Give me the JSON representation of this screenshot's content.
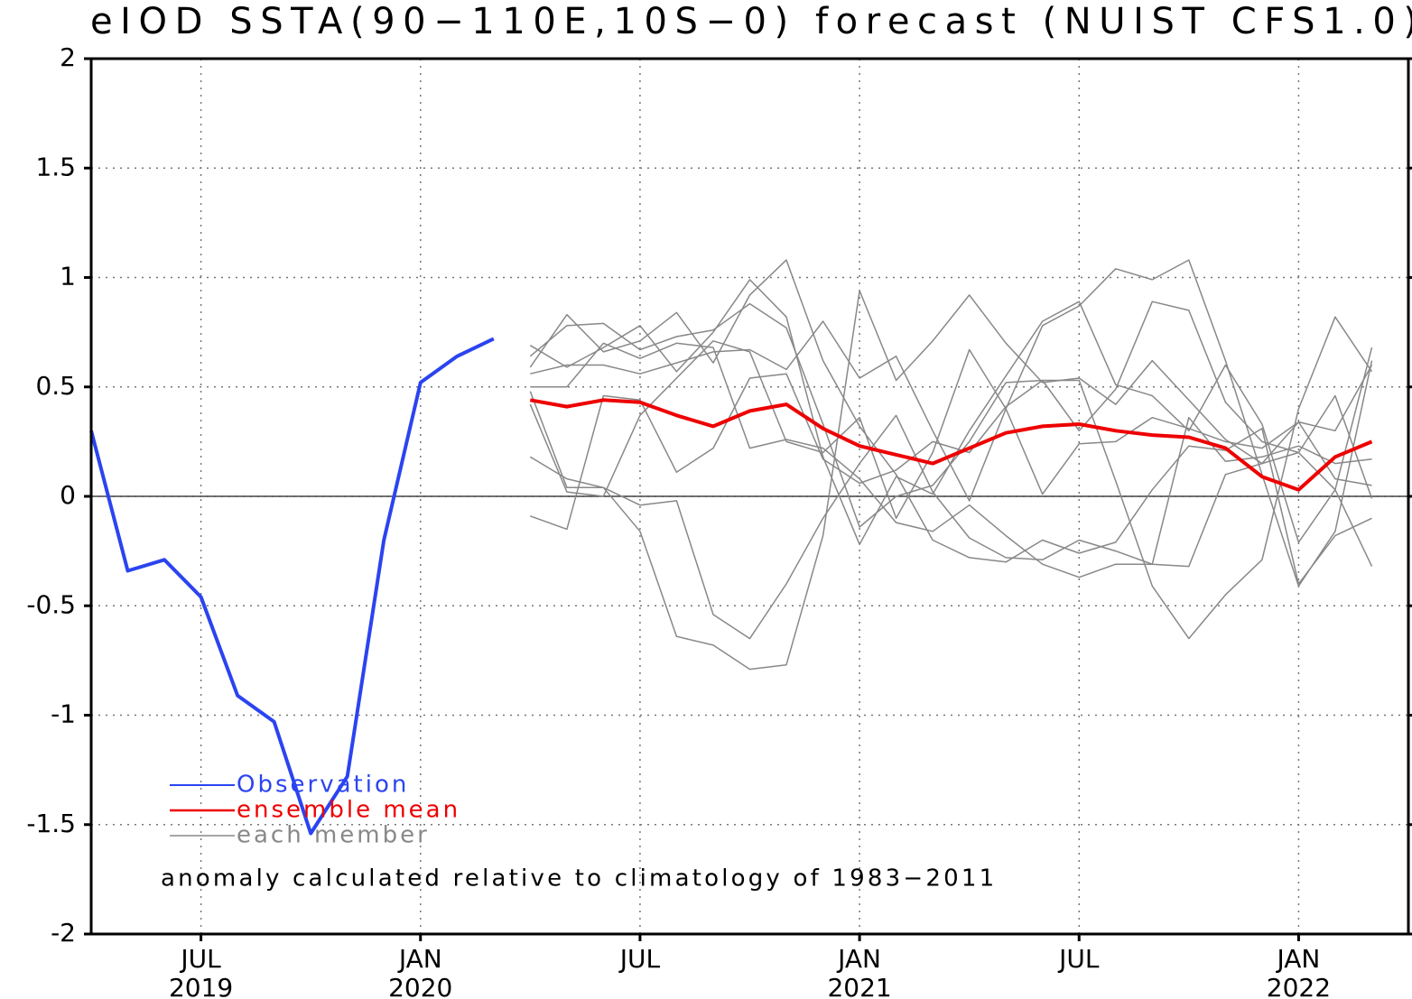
{
  "chart_data": {
    "type": "line",
    "title": "eIOD SSTA(90−110E,10S−0) forecast (NUIST CFS1.0)",
    "note": "anomaly calculated relative to climatology of 1983−2011",
    "x": [
      "2019-04",
      "2019-05",
      "2019-06",
      "2019-07",
      "2019-08",
      "2019-09",
      "2019-10",
      "2019-11",
      "2019-12",
      "2020-01",
      "2020-02",
      "2020-03",
      "2020-04",
      "2020-05",
      "2020-06",
      "2020-07",
      "2020-08",
      "2020-09",
      "2020-10",
      "2020-11",
      "2020-12",
      "2021-01",
      "2021-02",
      "2021-03",
      "2021-04",
      "2021-05",
      "2021-06",
      "2021-07",
      "2021-08",
      "2021-09",
      "2021-10",
      "2021-11",
      "2021-12",
      "2022-01",
      "2022-02",
      "2022-03"
    ],
    "xlim": [
      "2019-04",
      "2022-04"
    ],
    "xticks": [
      {
        "value": "2019-07",
        "label": [
          "JUL",
          "2019"
        ]
      },
      {
        "value": "2020-01",
        "label": [
          "JAN",
          "2020"
        ]
      },
      {
        "value": "2020-07",
        "label": [
          "JUL"
        ]
      },
      {
        "value": "2021-01",
        "label": [
          "JAN",
          "2021"
        ]
      },
      {
        "value": "2021-07",
        "label": [
          "JUL"
        ]
      },
      {
        "value": "2022-01",
        "label": [
          "JAN",
          "2022"
        ]
      }
    ],
    "ylim": [
      -2,
      2
    ],
    "yticks": [
      -2,
      -1.5,
      -1,
      -0.5,
      0,
      0.5,
      1,
      1.5,
      2
    ],
    "grid": true,
    "zero_line": true,
    "members": {
      "name": "each member",
      "color": "#888888",
      "values": [
        [
          null,
          null,
          null,
          null,
          null,
          null,
          null,
          null,
          null,
          null,
          null,
          null,
          0.48,
          0.04,
          0.04,
          -0.04,
          -0.02,
          -0.54,
          -0.65,
          -0.4,
          -0.1,
          0.15,
          0.37,
          0.02,
          -0.19,
          -0.28,
          -0.29,
          -0.2,
          -0.25,
          -0.31,
          -0.32,
          0.1,
          0.15,
          0.2,
          0.03,
          -0.32
        ],
        [
          null,
          null,
          null,
          null,
          null,
          null,
          null,
          null,
          null,
          null,
          null,
          null,
          0.18,
          0.08,
          0.04,
          -0.16,
          -0.64,
          -0.68,
          -0.79,
          -0.77,
          -0.18,
          0.94,
          0.53,
          0.71,
          0.92,
          0.7,
          0.52,
          0.54,
          0.42,
          0.62,
          0.44,
          0.26,
          0.15,
          0.34,
          0.3,
          0.6
        ],
        [
          null,
          null,
          null,
          null,
          null,
          null,
          null,
          null,
          null,
          null,
          null,
          null,
          -0.09,
          -0.15,
          0.46,
          0.44,
          0.11,
          0.22,
          0.54,
          0.56,
          0.17,
          0.06,
          0.12,
          0.25,
          0.2,
          0.41,
          0.53,
          0.53,
          0.07,
          -0.41,
          -0.65,
          -0.45,
          -0.29,
          0.4,
          0.82,
          0.57
        ],
        [
          null,
          null,
          null,
          null,
          null,
          null,
          null,
          null,
          null,
          null,
          null,
          null,
          0.69,
          0.59,
          0.68,
          0.78,
          0.57,
          0.75,
          0.99,
          0.82,
          0.18,
          -0.22,
          0.09,
          0.01,
          0.3,
          0.55,
          0.8,
          0.89,
          0.51,
          0.46,
          0.3,
          0.6,
          0.33,
          -0.21,
          0.03,
          0.68
        ],
        [
          null,
          null,
          null,
          null,
          null,
          null,
          null,
          null,
          null,
          null,
          null,
          null,
          0.59,
          0.83,
          0.66,
          0.71,
          0.84,
          0.61,
          0.92,
          1.08,
          0.62,
          0.32,
          0.1,
          -0.2,
          -0.28,
          -0.3,
          -0.2,
          -0.26,
          -0.21,
          0.03,
          0.23,
          0.21,
          0.31,
          -0.4,
          -0.18,
          -0.1
        ],
        [
          null,
          null,
          null,
          null,
          null,
          null,
          null,
          null,
          null,
          null,
          null,
          null,
          0.56,
          0.6,
          0.6,
          0.56,
          0.61,
          0.66,
          0.67,
          0.58,
          0.8,
          0.54,
          0.64,
          0.3,
          -0.02,
          0.4,
          0.78,
          0.87,
          1.04,
          0.99,
          1.08,
          0.62,
          0.1,
          -0.41,
          -0.16,
          0.62
        ],
        [
          null,
          null,
          null,
          null,
          null,
          null,
          null,
          null,
          null,
          null,
          null,
          null,
          0.64,
          0.78,
          0.79,
          0.67,
          0.73,
          0.76,
          0.88,
          0.77,
          0.33,
          -0.14,
          0.0,
          0.05,
          0.25,
          0.52,
          0.53,
          0.3,
          0.49,
          0.89,
          0.85,
          0.43,
          0.25,
          0.2,
          0.46,
          -0.01
        ],
        [
          null,
          null,
          null,
          null,
          null,
          null,
          null,
          null,
          null,
          null,
          null,
          null,
          0.5,
          0.5,
          0.7,
          0.63,
          0.7,
          0.68,
          0.22,
          0.26,
          0.22,
          0.08,
          -0.12,
          -0.16,
          -0.04,
          -0.18,
          -0.31,
          -0.37,
          -0.31,
          -0.31,
          0.36,
          0.16,
          0.18,
          0.23,
          0.15,
          0.17
        ],
        [
          null,
          null,
          null,
          null,
          null,
          null,
          null,
          null,
          null,
          null,
          null,
          null,
          0.42,
          0.02,
          0.0,
          0.37,
          0.54,
          0.71,
          0.66,
          0.25,
          0.2,
          0.36,
          -0.1,
          0.2,
          0.67,
          0.4,
          0.01,
          0.24,
          0.25,
          0.36,
          0.31,
          0.25,
          0.22,
          0.34,
          0.08,
          0.05
        ]
      ]
    },
    "series": [
      {
        "name": "Observation",
        "color": "#2b44f0",
        "values": [
          0.3,
          -0.34,
          -0.29,
          -0.46,
          -0.91,
          -1.03,
          -1.54,
          -1.28,
          -0.2,
          0.52,
          0.64,
          0.72,
          null,
          null,
          null,
          null,
          null,
          null,
          null,
          null,
          null,
          null,
          null,
          null,
          null,
          null,
          null,
          null,
          null,
          null,
          null,
          null,
          null,
          null,
          null,
          null
        ]
      },
      {
        "name": "ensemble mean",
        "color": "#ee0000",
        "values": [
          null,
          null,
          null,
          null,
          null,
          null,
          null,
          null,
          null,
          null,
          null,
          null,
          0.44,
          0.41,
          0.44,
          0.43,
          0.37,
          0.32,
          0.39,
          0.42,
          0.31,
          0.23,
          0.19,
          0.15,
          0.22,
          0.29,
          0.32,
          0.33,
          0.3,
          0.28,
          0.27,
          0.22,
          0.09,
          0.03,
          0.18,
          0.25
        ]
      }
    ]
  }
}
